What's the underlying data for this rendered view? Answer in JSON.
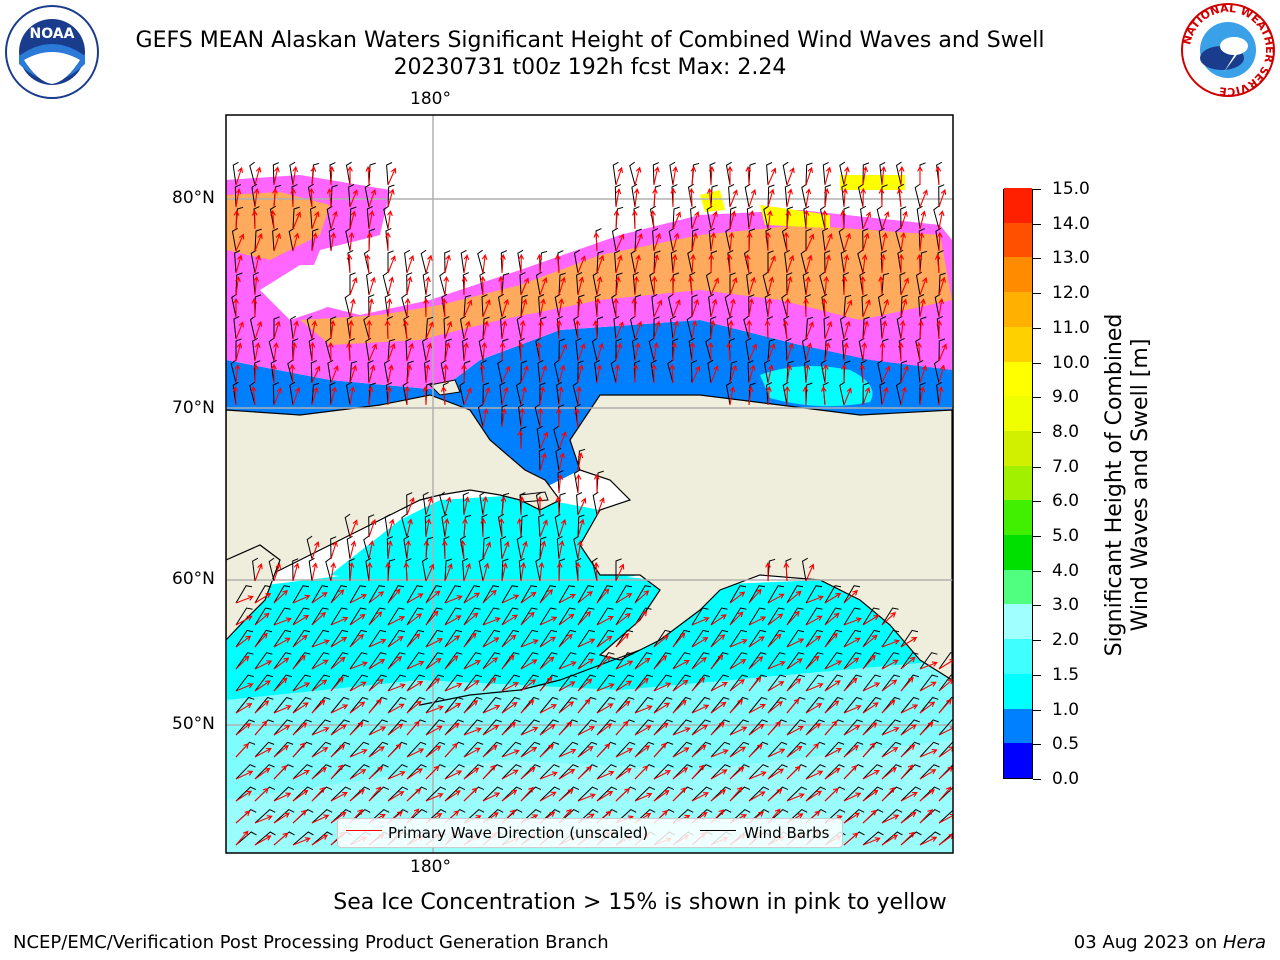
{
  "header": {
    "title_line1": "GEFS MEAN Alaskan Waters Significant Height of Combined Wind Waves and Swell",
    "title_line2": "20230731 t00z 192h fcst   Max: 2.24"
  },
  "logos": {
    "left": "NOAA",
    "right_ring_text": "NATIONAL WEATHER SERVICE"
  },
  "map": {
    "lon_label_top": "180°",
    "lon_label_bottom": "180°",
    "lat_labels": [
      "80°N",
      "70°N",
      "60°N",
      "50°N"
    ],
    "colors": {
      "land": "#efeddb",
      "ocean_main": "#00ffff",
      "ocean_light": "#9ffcfc",
      "ocean_blue": "#0080ff",
      "ice_pink": "#ff66ff",
      "ice_orange": "#ffb14a",
      "ice_yellow": "#ffff00",
      "grid": "#b0b0b0",
      "wave_arrow": "#ff0000",
      "wind_barb": "#000000"
    }
  },
  "legend": {
    "wave_label": "Primary Wave Direction (unscaled)",
    "barb_label": "Wind Barbs"
  },
  "colorbar": {
    "title_line1": "Significant Height of Combined",
    "title_line2": "Wind Waves and Swell [m]",
    "levels": [
      "0.0",
      "0.5",
      "1.0",
      "1.5",
      "2.0",
      "3.0",
      "4.0",
      "5.0",
      "6.0",
      "7.0",
      "8.0",
      "9.0",
      "10.0",
      "11.0",
      "12.0",
      "13.0",
      "14.0",
      "15.0"
    ],
    "colors": [
      "#0000ff",
      "#0080ff",
      "#00ffff",
      "#40ffff",
      "#a0ffff",
      "#50ff80",
      "#00e000",
      "#40f000",
      "#a0f000",
      "#d0f000",
      "#f0ff00",
      "#ffff00",
      "#ffd000",
      "#ffb000",
      "#ff8c00",
      "#ff5000",
      "#ff2000"
    ]
  },
  "footer": {
    "note": "Sea Ice Concentration > 15% is shown in pink to yellow",
    "left": "NCEP/EMC/Verification Post Processing Product Generation Branch",
    "right_date": "03 Aug 2023 on ",
    "right_host": "Hera"
  }
}
